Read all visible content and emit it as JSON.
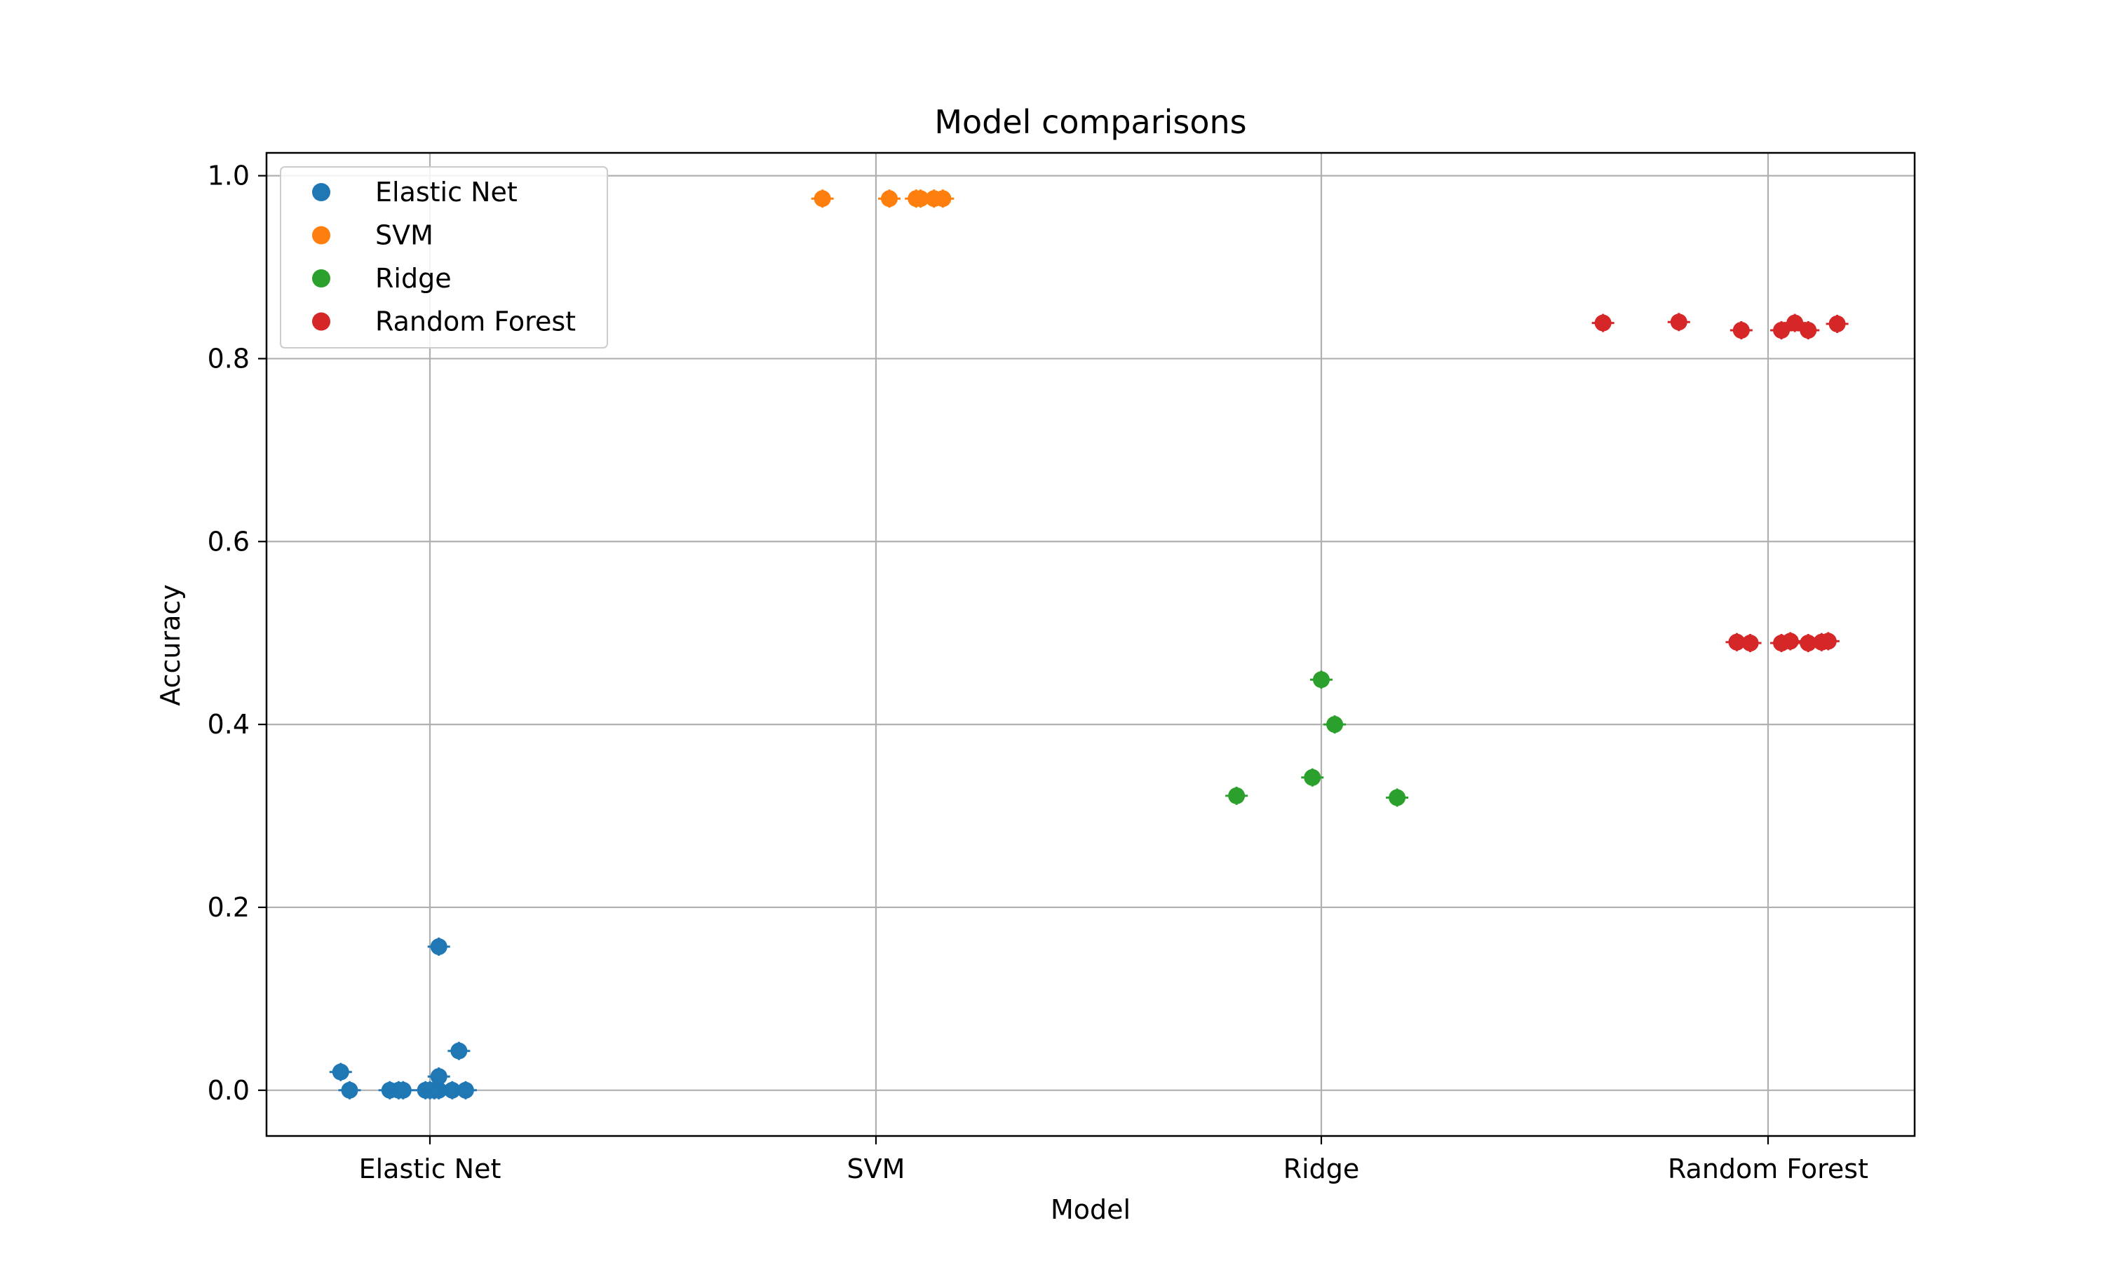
{
  "chart_data": {
    "type": "scatter",
    "title": "Model comparisons",
    "xlabel": "Model",
    "ylabel": "Accuracy",
    "categories": [
      "Elastic Net",
      "SVM",
      "Ridge",
      "Random Forest"
    ],
    "ylim": [
      -0.05,
      1.025
    ],
    "yticks": [
      0.0,
      0.2,
      0.4,
      0.6,
      0.8,
      1.0
    ],
    "ytick_labels": [
      "0.0",
      "0.2",
      "0.4",
      "0.6",
      "0.8",
      "1.0"
    ],
    "grid": true,
    "legend_position": "top-left",
    "series": [
      {
        "name": "Elastic Net",
        "color": "#1f77b4",
        "points": [
          {
            "x": -0.2,
            "y": 0.02
          },
          {
            "x": -0.18,
            "y": 0.0
          },
          {
            "x": -0.09,
            "y": 0.0
          },
          {
            "x": -0.07,
            "y": 0.0
          },
          {
            "x": -0.06,
            "y": 0.0
          },
          {
            "x": -0.01,
            "y": 0.0
          },
          {
            "x": 0.0,
            "y": 0.0
          },
          {
            "x": 0.01,
            "y": 0.0
          },
          {
            "x": 0.02,
            "y": 0.0
          },
          {
            "x": 0.02,
            "y": 0.015
          },
          {
            "x": 0.02,
            "y": 0.157
          },
          {
            "x": 0.05,
            "y": 0.0
          },
          {
            "x": 0.065,
            "y": 0.043
          },
          {
            "x": 0.08,
            "y": 0.0
          }
        ]
      },
      {
        "name": "SVM",
        "color": "#ff7f0e",
        "points": [
          {
            "x": -0.12,
            "y": 0.975
          },
          {
            "x": 0.03,
            "y": 0.975
          },
          {
            "x": 0.09,
            "y": 0.975
          },
          {
            "x": 0.1,
            "y": 0.975
          },
          {
            "x": 0.13,
            "y": 0.975
          },
          {
            "x": 0.15,
            "y": 0.975
          }
        ]
      },
      {
        "name": "Ridge",
        "color": "#2ca02c",
        "points": [
          {
            "x": -0.19,
            "y": 0.322
          },
          {
            "x": -0.02,
            "y": 0.342
          },
          {
            "x": 0.0,
            "y": 0.449
          },
          {
            "x": 0.03,
            "y": 0.4
          },
          {
            "x": 0.17,
            "y": 0.32
          }
        ]
      },
      {
        "name": "Random Forest",
        "color": "#d62728",
        "points": [
          {
            "x": -0.37,
            "y": 0.839
          },
          {
            "x": -0.2,
            "y": 0.84
          },
          {
            "x": -0.06,
            "y": 0.831
          },
          {
            "x": 0.03,
            "y": 0.831
          },
          {
            "x": 0.06,
            "y": 0.839
          },
          {
            "x": 0.09,
            "y": 0.831
          },
          {
            "x": 0.155,
            "y": 0.838
          },
          {
            "x": -0.07,
            "y": 0.49
          },
          {
            "x": -0.04,
            "y": 0.489
          },
          {
            "x": 0.03,
            "y": 0.489
          },
          {
            "x": 0.05,
            "y": 0.491
          },
          {
            "x": 0.09,
            "y": 0.489
          },
          {
            "x": 0.12,
            "y": 0.49
          },
          {
            "x": 0.135,
            "y": 0.491
          }
        ]
      }
    ]
  }
}
